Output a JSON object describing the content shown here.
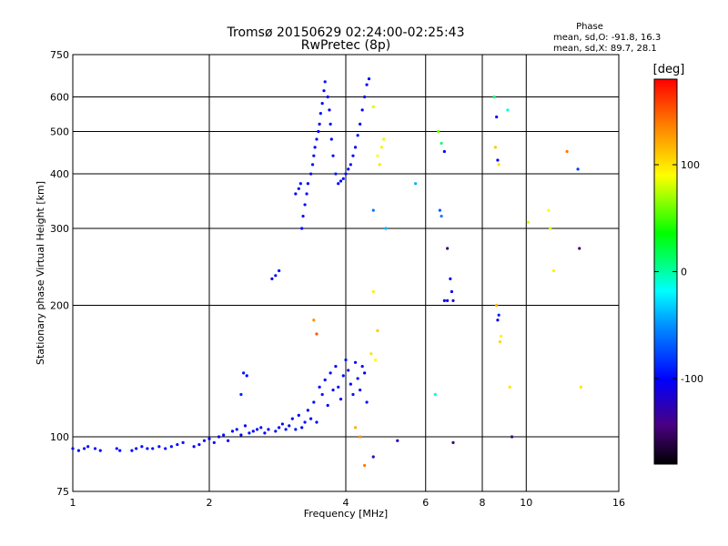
{
  "header": {
    "title_line1": "Tromsø 20150629 02:24:00-02:25:43",
    "title_line2": "RwPretec (8p)",
    "phase_heading": "Phase",
    "phase_stats_o": "mean, sd,O: -91.8, 16.3",
    "phase_stats_x": "mean, sd,X:  89.7, 28.1"
  },
  "colorbar": {
    "label": "[deg]",
    "ticks": [
      "100",
      "0",
      "-100"
    ],
    "tick_values": [
      100,
      0,
      -100
    ],
    "range": [
      -180,
      180
    ]
  },
  "chart_data": {
    "type": "scatter",
    "xlabel": "Frequency [MHz]",
    "ylabel": "Stationary phase Virtual Height [km]",
    "xscale": "log",
    "yscale": "log",
    "xlim": [
      1,
      16
    ],
    "ylim": [
      75,
      750
    ],
    "x_ticks": [
      "1",
      "2",
      "4",
      "6",
      "8",
      "10",
      "16"
    ],
    "x_tick_values": [
      1,
      2,
      4,
      6,
      8,
      10,
      16
    ],
    "y_ticks": [
      "75",
      "100",
      "200",
      "300",
      "400",
      "500",
      "600",
      "750"
    ],
    "y_tick_values": [
      75,
      100,
      200,
      300,
      400,
      500,
      600,
      750
    ],
    "grid": true,
    "points": [
      [
        1.0,
        94,
        -100
      ],
      [
        1.03,
        93,
        -100
      ],
      [
        1.06,
        94,
        -100
      ],
      [
        1.08,
        95,
        -95
      ],
      [
        1.12,
        94,
        -100
      ],
      [
        1.15,
        93,
        -100
      ],
      [
        1.25,
        94,
        -100
      ],
      [
        1.27,
        93,
        -100
      ],
      [
        1.35,
        93,
        -100
      ],
      [
        1.38,
        94,
        -100
      ],
      [
        1.42,
        95,
        -95
      ],
      [
        1.46,
        94,
        -100
      ],
      [
        1.5,
        94,
        -100
      ],
      [
        1.55,
        95,
        -95
      ],
      [
        1.6,
        94,
        -100
      ],
      [
        1.65,
        95,
        -95
      ],
      [
        1.7,
        96,
        -100
      ],
      [
        1.75,
        97,
        -95
      ],
      [
        1.85,
        95,
        -100
      ],
      [
        1.9,
        96,
        -100
      ],
      [
        1.95,
        98,
        -95
      ],
      [
        2.0,
        99,
        -100
      ],
      [
        2.05,
        97,
        -95
      ],
      [
        2.1,
        100,
        -100
      ],
      [
        2.15,
        101,
        -95
      ],
      [
        2.2,
        98,
        -100
      ],
      [
        2.25,
        103,
        -100
      ],
      [
        2.3,
        104,
        -95
      ],
      [
        2.35,
        101,
        -100
      ],
      [
        2.4,
        106,
        -100
      ],
      [
        2.45,
        102,
        -95
      ],
      [
        2.5,
        103,
        -100
      ],
      [
        2.55,
        104,
        -100
      ],
      [
        2.6,
        105,
        -95
      ],
      [
        2.65,
        102,
        -100
      ],
      [
        2.7,
        104,
        -100
      ],
      [
        2.8,
        103,
        -95
      ],
      [
        2.85,
        105,
        -100
      ],
      [
        2.9,
        107,
        -100
      ],
      [
        2.95,
        104,
        -95
      ],
      [
        3.0,
        106,
        -100
      ],
      [
        3.05,
        110,
        -100
      ],
      [
        3.1,
        104,
        -95
      ],
      [
        3.15,
        112,
        -100
      ],
      [
        3.2,
        105,
        -100
      ],
      [
        3.25,
        108,
        -95
      ],
      [
        3.3,
        115,
        -100
      ],
      [
        3.35,
        110,
        -100
      ],
      [
        3.4,
        120,
        -95
      ],
      [
        3.45,
        108,
        -100
      ],
      [
        3.5,
        130,
        -100
      ],
      [
        3.55,
        125,
        -95
      ],
      [
        3.6,
        135,
        -100
      ],
      [
        3.65,
        118,
        -100
      ],
      [
        3.7,
        140,
        -95
      ],
      [
        3.75,
        128,
        -100
      ],
      [
        3.8,
        145,
        -100
      ],
      [
        3.85,
        130,
        -95
      ],
      [
        3.9,
        122,
        -100
      ],
      [
        3.95,
        138,
        -100
      ],
      [
        4.0,
        150,
        -95
      ],
      [
        4.05,
        142,
        -100
      ],
      [
        4.1,
        132,
        -100
      ],
      [
        4.15,
        125,
        -95
      ],
      [
        4.2,
        148,
        -100
      ],
      [
        4.25,
        136,
        -100
      ],
      [
        4.3,
        128,
        -95
      ],
      [
        4.35,
        145,
        -100
      ],
      [
        4.4,
        140,
        -100
      ],
      [
        4.45,
        120,
        -95
      ],
      [
        2.38,
        140,
        -95
      ],
      [
        2.42,
        138,
        -100
      ],
      [
        2.35,
        125,
        -90
      ],
      [
        3.2,
        300,
        -100
      ],
      [
        3.22,
        320,
        -100
      ],
      [
        3.25,
        340,
        -100
      ],
      [
        3.28,
        360,
        -95
      ],
      [
        3.3,
        380,
        -100
      ],
      [
        3.35,
        400,
        -100
      ],
      [
        3.38,
        420,
        -95
      ],
      [
        3.4,
        440,
        -100
      ],
      [
        3.42,
        460,
        -100
      ],
      [
        3.45,
        480,
        -95
      ],
      [
        3.48,
        500,
        -100
      ],
      [
        3.5,
        520,
        -100
      ],
      [
        3.52,
        550,
        -95
      ],
      [
        3.55,
        580,
        -100
      ],
      [
        3.58,
        620,
        -100
      ],
      [
        3.6,
        650,
        -95
      ],
      [
        3.65,
        600,
        -100
      ],
      [
        3.68,
        560,
        -100
      ],
      [
        3.7,
        520,
        -95
      ],
      [
        3.72,
        480,
        -100
      ],
      [
        3.75,
        440,
        -100
      ],
      [
        3.8,
        400,
        -95
      ],
      [
        3.85,
        380,
        -100
      ],
      [
        3.9,
        385,
        -100
      ],
      [
        3.95,
        390,
        -95
      ],
      [
        4.0,
        400,
        -100
      ],
      [
        4.05,
        410,
        -100
      ],
      [
        4.1,
        420,
        -95
      ],
      [
        4.15,
        440,
        -100
      ],
      [
        4.2,
        460,
        -100
      ],
      [
        4.25,
        490,
        -95
      ],
      [
        4.3,
        520,
        -100
      ],
      [
        4.35,
        560,
        -100
      ],
      [
        4.4,
        600,
        -95
      ],
      [
        4.45,
        640,
        -100
      ],
      [
        4.5,
        660,
        -100
      ],
      [
        3.1,
        360,
        -100
      ],
      [
        3.15,
        370,
        -100
      ],
      [
        3.18,
        380,
        -95
      ],
      [
        2.75,
        230,
        -100
      ],
      [
        2.8,
        234,
        -100
      ],
      [
        2.85,
        240,
        -95
      ],
      [
        4.6,
        570,
        80
      ],
      [
        4.7,
        440,
        90
      ],
      [
        4.75,
        420,
        100
      ],
      [
        4.8,
        460,
        95
      ],
      [
        4.85,
        480,
        85
      ],
      [
        4.9,
        300,
        -40
      ],
      [
        4.6,
        330,
        -60
      ],
      [
        6.4,
        500,
        60
      ],
      [
        6.5,
        470,
        10
      ],
      [
        6.6,
        450,
        -100
      ],
      [
        6.45,
        330,
        -70
      ],
      [
        6.5,
        320,
        -60
      ],
      [
        6.7,
        270,
        -150
      ],
      [
        6.8,
        230,
        -110
      ],
      [
        6.85,
        215,
        -100
      ],
      [
        6.7,
        205,
        -110
      ],
      [
        6.9,
        205,
        -120
      ],
      [
        5.7,
        380,
        -40
      ],
      [
        6.6,
        205,
        -100
      ],
      [
        8.5,
        600,
        10
      ],
      [
        8.6,
        540,
        -100
      ],
      [
        8.55,
        460,
        110
      ],
      [
        8.65,
        430,
        -100
      ],
      [
        8.7,
        420,
        100
      ],
      [
        8.6,
        200,
        120
      ],
      [
        8.7,
        190,
        -90
      ],
      [
        8.65,
        185,
        -110
      ],
      [
        8.8,
        170,
        95
      ],
      [
        8.75,
        165,
        105
      ],
      [
        9.1,
        560,
        -10
      ],
      [
        9.2,
        130,
        100
      ],
      [
        10.1,
        310,
        80
      ],
      [
        11.2,
        330,
        90
      ],
      [
        11.3,
        300,
        80
      ],
      [
        11.5,
        240,
        95
      ],
      [
        12.3,
        450,
        140
      ],
      [
        13.0,
        410,
        -80
      ],
      [
        13.1,
        270,
        -150
      ],
      [
        13.2,
        130,
        100
      ],
      [
        4.6,
        215,
        95
      ],
      [
        4.7,
        175,
        110
      ],
      [
        4.55,
        155,
        100
      ],
      [
        4.65,
        150,
        90
      ],
      [
        3.4,
        185,
        130
      ],
      [
        3.45,
        172,
        150
      ],
      [
        4.2,
        105,
        120
      ],
      [
        4.3,
        100,
        130
      ],
      [
        4.6,
        90,
        -130
      ],
      [
        4.4,
        86,
        140
      ],
      [
        5.2,
        98,
        -120
      ],
      [
        6.9,
        97,
        -150
      ],
      [
        9.3,
        100,
        -150
      ],
      [
        6.3,
        125,
        -10
      ]
    ]
  }
}
